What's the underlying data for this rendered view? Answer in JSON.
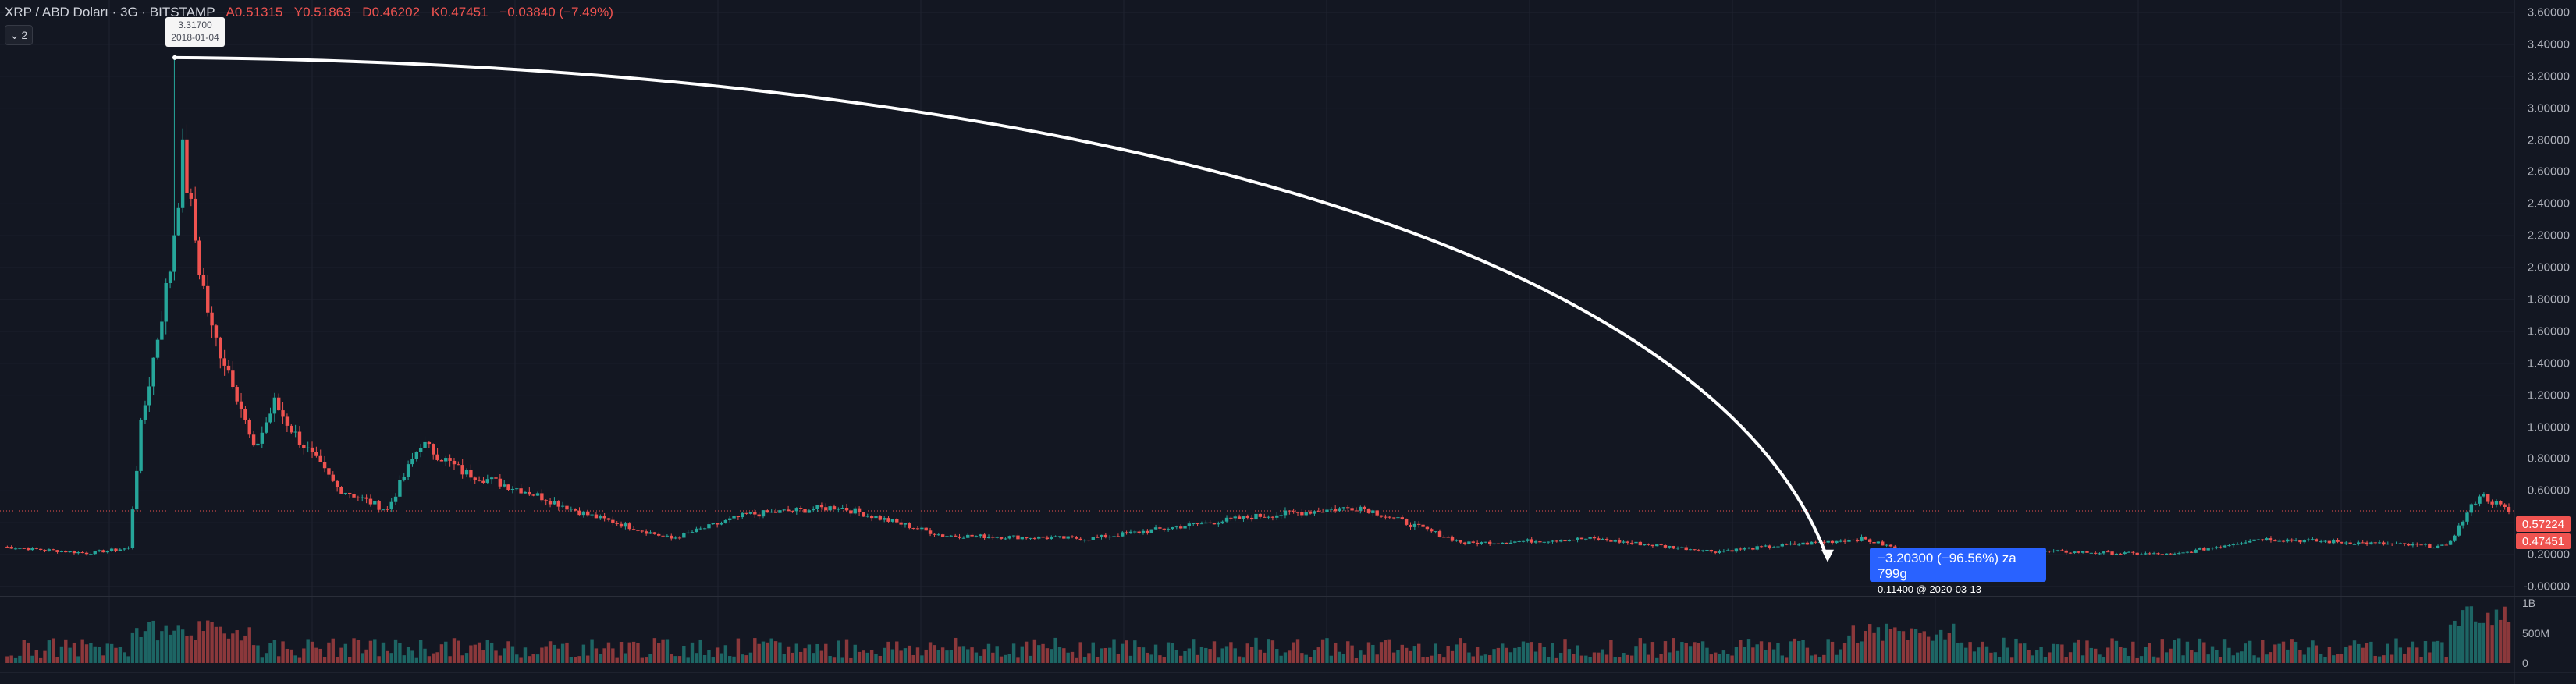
{
  "legend": {
    "symbol": "XRP / ABD Doları · 3G · BITSTAMP",
    "open": "A0.51315",
    "high": "Y0.51863",
    "low": "D0.46202",
    "close": "K0.47451",
    "change": "−0.03840 (−7.49%)"
  },
  "indicator_toggle": {
    "label": "2",
    "icon": "chevron-down-icon"
  },
  "price_axis": {
    "labels": [
      "3.60000",
      "3.40000",
      "3.20000",
      "3.00000",
      "2.80000",
      "2.60000",
      "2.40000",
      "2.20000",
      "2.00000",
      "1.80000",
      "1.60000",
      "1.40000",
      "1.20000",
      "1.00000",
      "0.80000",
      "0.60000",
      "0.40000",
      "0.20000",
      "-0.00000"
    ],
    "current_price": "0.57224",
    "last_close": "0.47451"
  },
  "volume_axis": {
    "labels": [
      "1B",
      "500M",
      "0"
    ]
  },
  "annotations": {
    "high_tooltip": {
      "value": "3.31700",
      "date": "2018-01-04"
    },
    "measure": {
      "line1": "−3.20300 (−96.56%) za 799g",
      "line2": "0.11400 @ 2020-03-13"
    }
  },
  "colors": {
    "background": "#131722",
    "up": "#26a69a",
    "down": "#ef5350",
    "measure_box": "#2962ff",
    "grid": "#1f2330"
  },
  "chart_data": {
    "type": "candlestick",
    "series": "XRP/USD 3-day",
    "ylim": [
      -0.1,
      3.7
    ],
    "keypoints": [
      {
        "period": 0,
        "price": 0.25
      },
      {
        "period": 20,
        "price": 0.21
      },
      {
        "period": 30,
        "price": 0.24
      },
      {
        "period": 33,
        "price": 1.0
      },
      {
        "period": 40,
        "price": 2.0
      },
      {
        "period": 43,
        "price": 2.7
      },
      {
        "period": 47,
        "price": 2.0
      },
      {
        "period": 50,
        "price": 1.6
      },
      {
        "period": 55,
        "price": 1.3
      },
      {
        "period": 60,
        "price": 0.85
      },
      {
        "period": 65,
        "price": 1.15
      },
      {
        "period": 70,
        "price": 0.95
      },
      {
        "period": 80,
        "price": 0.62
      },
      {
        "period": 92,
        "price": 0.48
      },
      {
        "period": 100,
        "price": 0.9
      },
      {
        "period": 110,
        "price": 0.72
      },
      {
        "period": 125,
        "price": 0.6
      },
      {
        "period": 140,
        "price": 0.45
      },
      {
        "period": 160,
        "price": 0.3
      },
      {
        "period": 178,
        "price": 0.45
      },
      {
        "period": 200,
        "price": 0.5
      },
      {
        "period": 225,
        "price": 0.32
      },
      {
        "period": 260,
        "price": 0.3
      },
      {
        "period": 300,
        "price": 0.44
      },
      {
        "period": 325,
        "price": 0.5
      },
      {
        "period": 350,
        "price": 0.27
      },
      {
        "period": 380,
        "price": 0.3
      },
      {
        "period": 410,
        "price": 0.22
      },
      {
        "period": 445,
        "price": 0.3
      },
      {
        "period": 460,
        "price": 0.19
      },
      {
        "period": 490,
        "price": 0.22
      },
      {
        "period": 520,
        "price": 0.2
      },
      {
        "period": 540,
        "price": 0.3
      },
      {
        "period": 585,
        "price": 0.25
      },
      {
        "period": 593,
        "price": 0.58
      },
      {
        "period": 600,
        "price": 0.47
      }
    ],
    "high": {
      "price": 3.317,
      "date": "2018-01-04"
    },
    "low": {
      "price": 0.114,
      "date": "2020-03-13"
    }
  }
}
